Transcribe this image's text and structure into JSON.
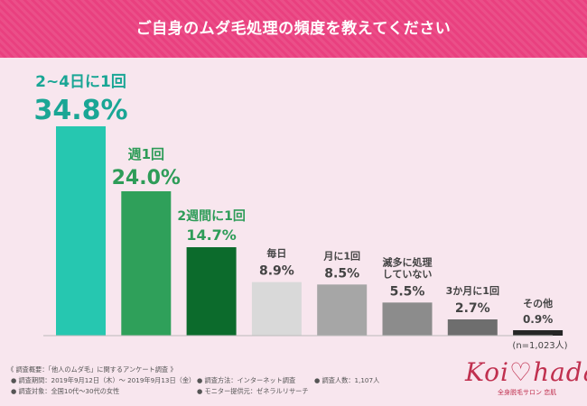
{
  "header": {
    "title": "ご自身のムダ毛処理の頻度を教えてください"
  },
  "colors": {
    "banner": "#e9407f",
    "background": "#f8e6ee"
  },
  "chart_data": {
    "type": "bar",
    "categories": [
      "2~4日に1回",
      "週1回",
      "2週間に1回",
      "毎日",
      "月に1回",
      "滅多に処理していない",
      "3か月に1回",
      "その他"
    ],
    "values": [
      34.8,
      24.0,
      14.7,
      8.9,
      8.5,
      5.5,
      2.7,
      0.9
    ],
    "value_labels": [
      "34.8%",
      "24.0%",
      "14.7%",
      "8.9%",
      "8.5%",
      "5.5%",
      "2.7%",
      "0.9%"
    ],
    "bar_colors": [
      "#26c7b0",
      "#2fa05a",
      "#0c6b2c",
      "#d9d9d9",
      "#a6a6a6",
      "#8c8c8c",
      "#6e6e6e",
      "#262626"
    ],
    "label_colors": [
      "#1aa695",
      "#2e9c58",
      "#2e9c58",
      "#444444",
      "#444444",
      "#444444",
      "#444444",
      "#444444"
    ],
    "ylim": [
      0,
      40
    ],
    "grid": false,
    "note": "(n=1,023人)"
  },
  "footer": {
    "survey_overview": "《 調査概要：「他人のムダ毛」に関するアンケート調査 》",
    "period": "● 調査期間：2019年9月12日（木）～ 2019年9月13日（金）",
    "method": "● 調査方法：インターネット調査",
    "count": "● 調査人数：1,107人",
    "target": "● 調査対象：全国10代～30代の女性",
    "provider": "● モニター提供元：ゼネラルリサーチ"
  },
  "logo": {
    "text": "Koi♡hada",
    "subtitle": "全身脱毛サロン 恋肌"
  }
}
